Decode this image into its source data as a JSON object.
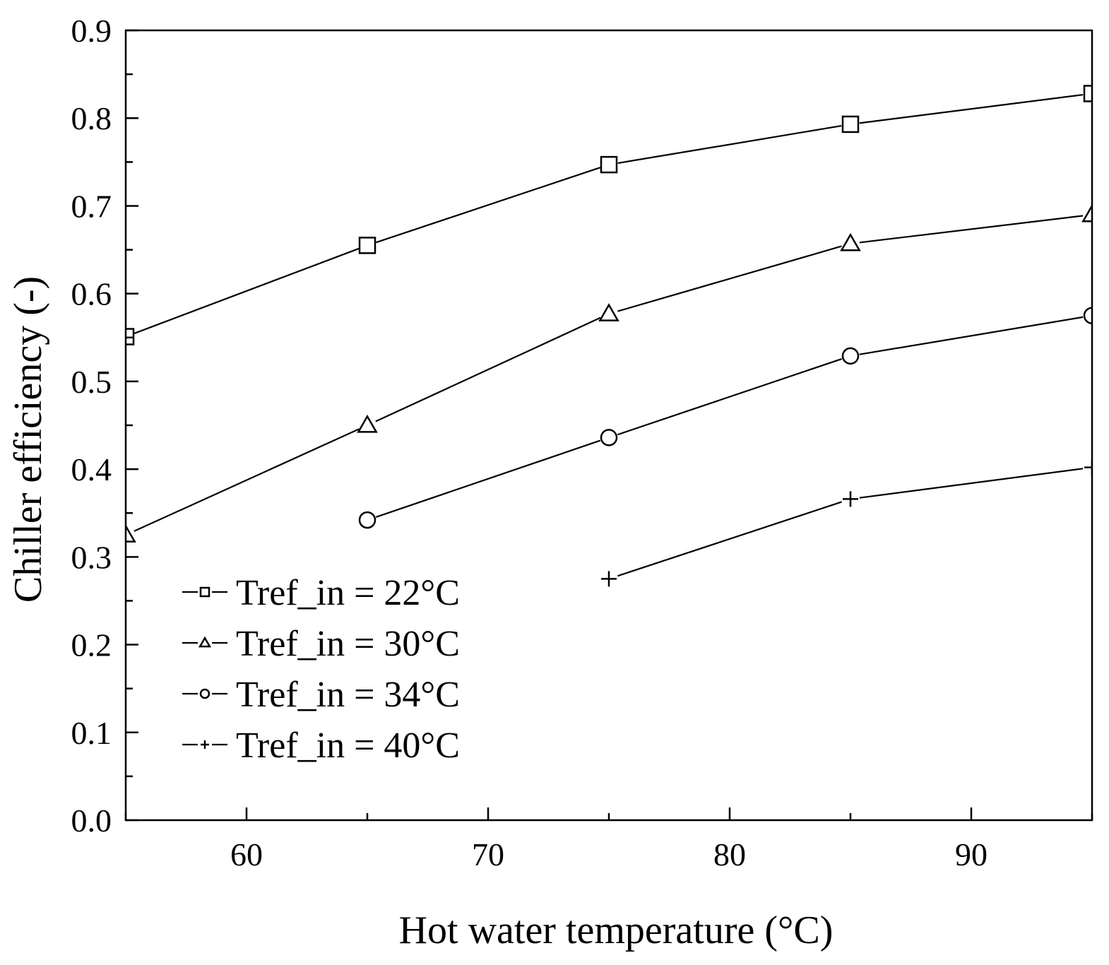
{
  "chart_data": {
    "type": "line",
    "title": "",
    "xlabel": "Hot water temperature (°C)",
    "ylabel": "Chiller efficiency (-)",
    "xlim": [
      55,
      95
    ],
    "ylim": [
      0.0,
      0.9
    ],
    "xticks": [
      60,
      70,
      80,
      90
    ],
    "xtick_labels": [
      "60",
      "70",
      "80",
      "90"
    ],
    "yticks": [
      0.0,
      0.1,
      0.2,
      0.3,
      0.4,
      0.5,
      0.6,
      0.7,
      0.8,
      0.9
    ],
    "ytick_labels": [
      "0.0",
      "0.1",
      "0.2",
      "0.3",
      "0.4",
      "0.5",
      "0.6",
      "0.7",
      "0.8",
      "0.9"
    ],
    "grid": false,
    "legend_position": "bottom-left",
    "series": [
      {
        "name": "Tref_in = 22°C",
        "marker": "square",
        "x": [
          55,
          65,
          75,
          85,
          95
        ],
        "y": [
          0.551,
          0.655,
          0.747,
          0.793,
          0.828
        ]
      },
      {
        "name": "Tref_in = 30°C",
        "marker": "triangle",
        "x": [
          55,
          65,
          75,
          85,
          95
        ],
        "y": [
          0.325,
          0.45,
          0.577,
          0.657,
          0.69
        ]
      },
      {
        "name": "Tref_in = 34°C",
        "marker": "circle",
        "x": [
          65,
          75,
          85,
          95
        ],
        "y": [
          0.342,
          0.436,
          0.529,
          0.575
        ]
      },
      {
        "name": "Tref_in = 40°C",
        "marker": "plus",
        "x": [
          75,
          85,
          95
        ],
        "y": [
          0.275,
          0.366,
          0.402
        ]
      }
    ]
  }
}
